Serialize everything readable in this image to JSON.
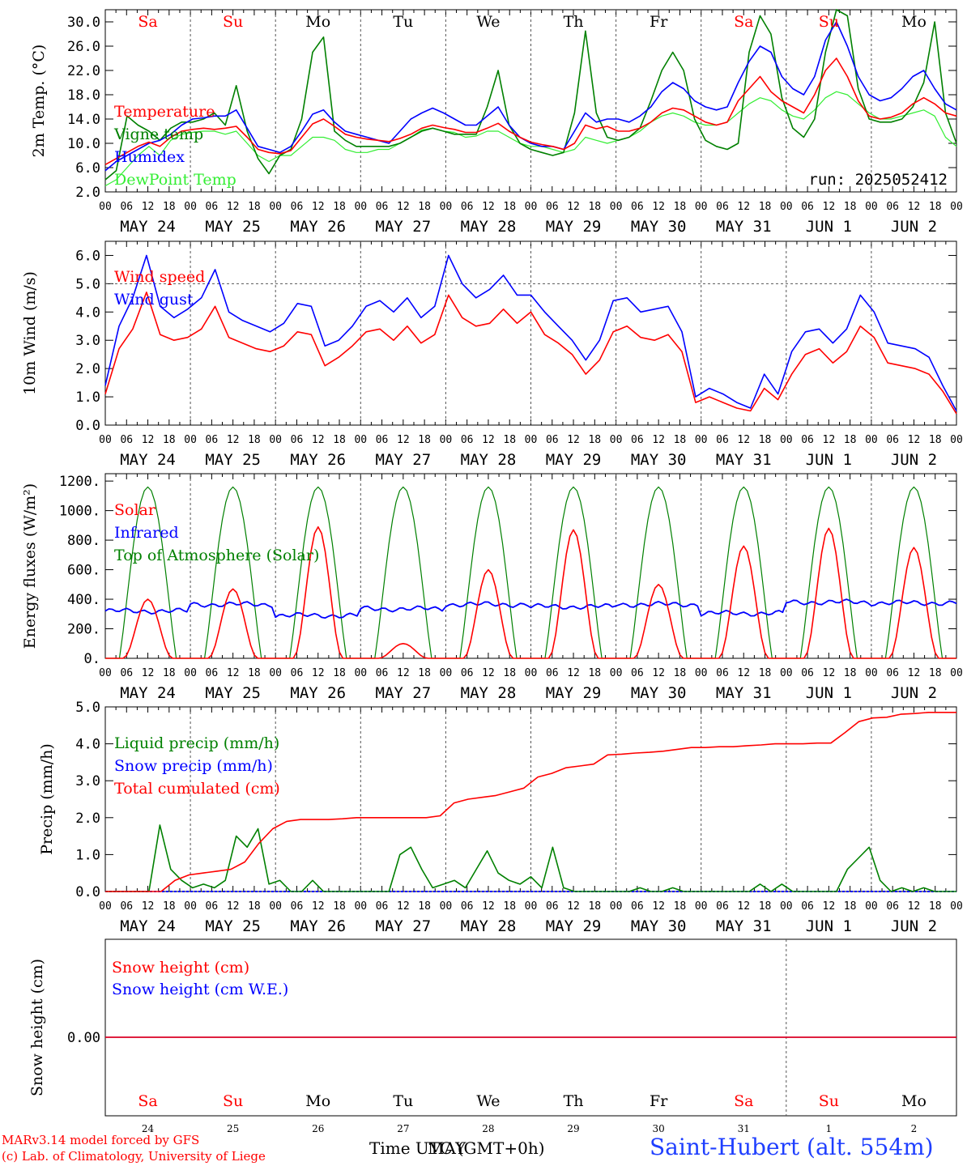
{
  "colors": {
    "red": "#ff0000",
    "green": "#008000",
    "blue": "#0000ff",
    "lightgreen": "#33ee33",
    "axis": "#000000"
  },
  "run": "run: 2025052412",
  "days": {
    "weekday_top": [
      "Sa",
      "Su",
      "Mo",
      "Tu",
      "We",
      "Th",
      "Fr",
      "Sa",
      "Su",
      "Mo"
    ],
    "weekday_colors": [
      "red",
      "red",
      "black",
      "black",
      "black",
      "black",
      "black",
      "red",
      "red",
      "black"
    ],
    "date_labels": [
      "MAY 24",
      "MAY 25",
      "MAY 26",
      "MAY 27",
      "MAY 28",
      "MAY 29",
      "MAY 30",
      "MAY 31",
      "JUN  1",
      "JUN  2"
    ],
    "hour_ticks": [
      "00",
      "06",
      "12",
      "18"
    ],
    "last_hour": "00",
    "day_numbers": [
      "24",
      "25",
      "26",
      "27",
      "28",
      "29",
      "30",
      "31",
      "1",
      "2"
    ]
  },
  "footer": {
    "model": "MARv3.14 model forced by GFS",
    "lab": "(c) Lab. of Climatology, University of Liege",
    "time_label": "Time UTC (GMT+0h)",
    "month_label": "MAY",
    "station": "Saint-Hubert (alt. 554m)"
  },
  "chart_data": [
    {
      "type": "line",
      "ylabel": "2m Temp. (°C)",
      "ylim": [
        2,
        32
      ],
      "yticks": [
        "2.0",
        "6.0",
        "10.0",
        "14.0",
        "18.0",
        "22.0",
        "26.0",
        "30.0"
      ],
      "series": [
        {
          "name": "Temperature",
          "color": "red",
          "step_hours": 3,
          "values": [
            6.5,
            7.5,
            8.5,
            9.5,
            10.2,
            9.5,
            11,
            12,
            12.3,
            12.5,
            12.3,
            12.5,
            12.8,
            11,
            9,
            8.5,
            8.3,
            8.8,
            11,
            13.2,
            14,
            12.8,
            11.5,
            11,
            10.7,
            10.5,
            10.3,
            10.8,
            11.5,
            12.5,
            13,
            12.6,
            12.3,
            11.8,
            11.8,
            12.5,
            13.3,
            12,
            11,
            10.2,
            9.8,
            9.5,
            9,
            10,
            13,
            12.4,
            12.8,
            12,
            12,
            12.5,
            13.5,
            15,
            15.8,
            15.5,
            14.5,
            13.5,
            13,
            13.5,
            17,
            19,
            21,
            18.5,
            17,
            16,
            15,
            18,
            22,
            24,
            21,
            17,
            14.5,
            14,
            14.3,
            15,
            16.5,
            17.5,
            16.5,
            15,
            14.5
          ]
        },
        {
          "name": "Vigne temp",
          "color": "green",
          "step_hours": 3,
          "values": [
            4,
            5.5,
            14.5,
            13,
            12,
            10.5,
            12.5,
            13.5,
            13.5,
            14,
            15,
            13,
            19.5,
            12,
            7.5,
            5,
            8,
            9,
            14,
            25,
            27.5,
            12,
            10.5,
            9.5,
            9.5,
            9.5,
            9.5,
            10,
            11,
            12,
            12.5,
            12,
            11.5,
            11.5,
            11.5,
            16,
            22,
            13,
            10,
            9,
            8.5,
            8,
            8.5,
            15,
            28.5,
            15,
            11,
            10.5,
            11,
            12.5,
            17,
            22,
            25,
            22,
            14,
            10.5,
            9.5,
            9,
            10,
            25,
            31,
            28,
            17.5,
            12.5,
            11,
            14,
            25,
            32,
            31,
            19,
            14,
            13.5,
            13.5,
            14,
            16,
            20,
            30,
            15,
            10
          ]
        },
        {
          "name": "Humidex",
          "color": "blue",
          "step_hours": 3,
          "values": [
            5.5,
            7,
            8,
            9,
            10,
            10.5,
            11.5,
            13,
            14,
            14.2,
            14.5,
            14.5,
            15.5,
            12.5,
            9.5,
            9,
            8.5,
            9.5,
            12,
            14.8,
            15.5,
            13.5,
            12,
            11.5,
            11,
            10.5,
            10,
            12,
            14,
            15,
            15.8,
            15,
            14,
            13,
            13,
            14.5,
            16,
            13,
            11,
            10,
            9.5,
            9.5,
            9,
            12,
            15,
            13.5,
            14,
            14,
            13.5,
            14.5,
            16,
            18.5,
            20,
            19,
            17,
            16,
            15.5,
            16,
            20,
            23.5,
            26,
            25,
            21,
            19,
            18,
            21,
            27,
            30,
            26,
            21,
            18,
            17,
            17.5,
            19,
            21,
            22,
            19,
            16.5,
            15.5
          ]
        },
        {
          "name": "DewPoint Temp",
          "color": "lightgreen",
          "step_hours": 3,
          "values": [
            3,
            4,
            6,
            8,
            9.5,
            8,
            10.5,
            11.5,
            11.8,
            12,
            12,
            11.5,
            12,
            10,
            8,
            7,
            8,
            8,
            9.5,
            11,
            11,
            10.5,
            9,
            8.5,
            8.5,
            9,
            9,
            10,
            11,
            12.2,
            12.5,
            12,
            11.8,
            11,
            11.2,
            12,
            12,
            11,
            10,
            9.5,
            9.5,
            9,
            8.5,
            9,
            11,
            10.5,
            10,
            10.5,
            11,
            12,
            13.5,
            14.5,
            15,
            14.5,
            13.5,
            13,
            13,
            13.5,
            15,
            16.5,
            17.5,
            17,
            15.5,
            14.5,
            14,
            15.5,
            17.5,
            18.5,
            18,
            16.5,
            15,
            14,
            14,
            14.5,
            15,
            15.5,
            14.5,
            11,
            9.5
          ]
        }
      ]
    },
    {
      "type": "line",
      "ylabel": "10m Wind (m/s)",
      "ylim": [
        0,
        6.5
      ],
      "yticks": [
        "0.0",
        "1.0",
        "2.0",
        "3.0",
        "4.0",
        "5.0",
        "6.0"
      ],
      "reference_line": 5.0,
      "series": [
        {
          "name": "Wind speed",
          "color": "red",
          "step_hours": 3,
          "values": [
            1.1,
            2.7,
            3.4,
            4.7,
            3.2,
            3.0,
            3.1,
            3.4,
            4.2,
            3.1,
            2.9,
            2.7,
            2.6,
            2.8,
            3.3,
            3.2,
            2.1,
            2.4,
            2.8,
            3.3,
            3.4,
            3.0,
            3.5,
            2.9,
            3.2,
            4.6,
            3.8,
            3.5,
            3.6,
            4.1,
            3.6,
            4.0,
            3.2,
            2.9,
            2.5,
            1.8,
            2.3,
            3.3,
            3.5,
            3.1,
            3.0,
            3.2,
            2.6,
            0.8,
            1.0,
            0.8,
            0.6,
            0.5,
            1.3,
            0.9,
            1.8,
            2.5,
            2.7,
            2.2,
            2.6,
            3.5,
            3.1,
            2.2,
            2.1,
            2.0,
            1.8,
            1.2,
            0.4
          ]
        },
        {
          "name": "Wind gust",
          "color": "blue",
          "step_hours": 3,
          "values": [
            1.4,
            3.5,
            4.5,
            6.0,
            4.2,
            3.8,
            4.1,
            4.5,
            5.5,
            4.0,
            3.7,
            3.5,
            3.3,
            3.6,
            4.3,
            4.2,
            2.8,
            3.0,
            3.5,
            4.2,
            4.4,
            4.0,
            4.5,
            3.8,
            4.2,
            6.0,
            5.0,
            4.5,
            4.8,
            5.3,
            4.6,
            4.6,
            4.0,
            3.5,
            3.0,
            2.3,
            3.0,
            4.4,
            4.5,
            4.0,
            4.1,
            4.2,
            3.3,
            1.0,
            1.3,
            1.1,
            0.8,
            0.6,
            1.8,
            1.1,
            2.6,
            3.3,
            3.4,
            2.9,
            3.4,
            4.6,
            4.0,
            2.9,
            2.8,
            2.7,
            2.4,
            1.4,
            0.5
          ]
        }
      ]
    },
    {
      "type": "line",
      "ylabel": "Energy fluxes (W/m²)",
      "ylim": [
        0,
        1250
      ],
      "yticks": [
        "0.",
        "200.",
        "400.",
        "600.",
        "800.",
        "1000.",
        "1200."
      ],
      "solar_peaks": [
        400,
        470,
        890,
        100,
        600,
        870,
        500,
        760,
        880,
        750
      ],
      "infrared_levels": [
        320,
        365,
        290,
        335,
        365,
        350,
        365,
        305,
        380,
        375
      ],
      "toa_peak": 1160,
      "series": [
        {
          "name": "Solar",
          "color": "red"
        },
        {
          "name": "Infrared",
          "color": "blue"
        },
        {
          "name": "Top of Atmosphere (Solar)",
          "color": "green"
        }
      ]
    },
    {
      "type": "line",
      "ylabel": "Precip (mm/h)",
      "ylim": [
        0,
        5
      ],
      "yticks": [
        "0.0",
        "1.0",
        "2.0",
        "3.0",
        "4.0",
        "5.0"
      ],
      "series": [
        {
          "name": "Liquid precip (mm/h)",
          "color": "green",
          "step_hours": 3,
          "values": [
            0,
            0,
            0,
            0,
            0,
            1.8,
            0.6,
            0.3,
            0.1,
            0.2,
            0.1,
            0.3,
            1.5,
            1.2,
            1.7,
            0.2,
            0.3,
            0,
            0,
            0.3,
            0,
            0,
            0,
            0,
            0,
            0,
            0,
            1.0,
            1.2,
            0.6,
            0.1,
            0.2,
            0.3,
            0.1,
            0.6,
            1.1,
            0.5,
            0.3,
            0.2,
            0.4,
            0.1,
            1.2,
            0.1,
            0,
            0,
            0,
            0,
            0,
            0,
            0.1,
            0,
            0,
            0.1,
            0,
            0,
            0,
            0,
            0,
            0,
            0,
            0.2,
            0,
            0.2,
            0,
            0,
            0,
            0,
            0,
            0.6,
            0.9,
            1.2,
            0.3,
            0,
            0.1,
            0,
            0.1,
            0,
            0,
            0
          ]
        },
        {
          "name": "Snow precip (mm/h)",
          "color": "blue",
          "step_hours": 3,
          "values": [
            0,
            0
          ]
        },
        {
          "name": "Total cumulated (cm)",
          "color": "red",
          "step_hours": 3,
          "values": [
            0,
            0,
            0,
            0,
            0,
            0.3,
            0.45,
            0.5,
            0.55,
            0.6,
            0.8,
            1.3,
            1.7,
            1.9,
            1.95,
            1.95,
            1.95,
            1.97,
            2.0,
            2.0,
            2.0,
            2.0,
            2.0,
            2.0,
            2.05,
            2.4,
            2.5,
            2.55,
            2.6,
            2.7,
            2.8,
            3.1,
            3.2,
            3.35,
            3.4,
            3.45,
            3.7,
            3.72,
            3.75,
            3.77,
            3.8,
            3.85,
            3.9,
            3.9,
            3.92,
            3.92,
            3.95,
            3.97,
            4.0,
            4.0,
            4.0,
            4.02,
            4.02,
            4.3,
            4.6,
            4.7,
            4.72,
            4.8,
            4.82,
            4.85,
            4.85,
            4.85
          ]
        }
      ]
    },
    {
      "type": "line",
      "ylabel": "Snow height (cm)",
      "yticks": [
        "0.00"
      ],
      "series": [
        {
          "name": "Snow height (cm)",
          "color": "red",
          "values": [
            0,
            0
          ]
        },
        {
          "name": "Snow height (cm W.E.)",
          "color": "blue",
          "values": [
            0,
            0
          ]
        }
      ]
    }
  ]
}
